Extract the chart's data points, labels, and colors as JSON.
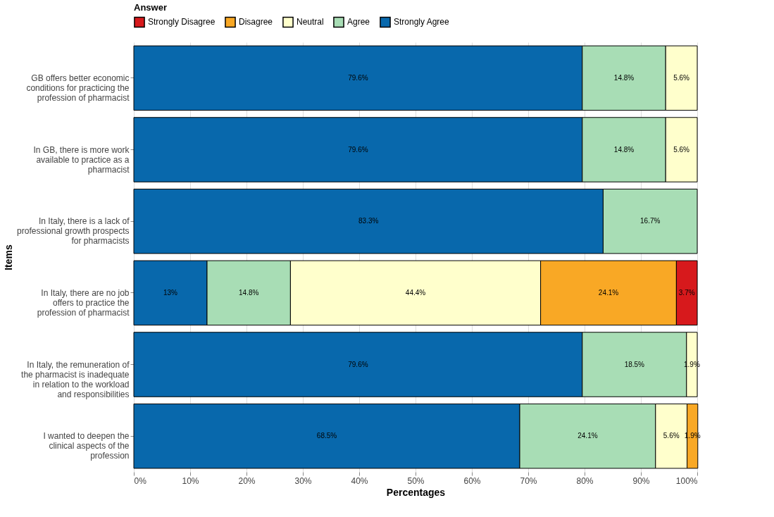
{
  "chart_data": {
    "type": "bar",
    "orientation": "horizontal",
    "stacked": true,
    "xlabel": "Percentages",
    "ylabel": "Items",
    "legend_title": "Answer",
    "legend": "top",
    "grid": "x",
    "categories": [
      "GB offers better economic conditions for practicing the profession of pharmacist",
      "In GB, there is more work available to practice as a pharmacist",
      "In Italy, there is a lack of professional growth prospects for pharmacists",
      "In Italy, there are no job offers to practice the profession of pharmacist",
      "In Italy, the remuneration of the pharmacist is inadequate in relation to the workload and responsibilities",
      "I wanted to deepen the clinical aspects of the profession"
    ],
    "xlim": [
      0,
      100
    ],
    "xticks": [
      {
        "value": 0,
        "label": "0%"
      },
      {
        "value": 10,
        "label": "10%"
      },
      {
        "value": 20,
        "label": "20%"
      },
      {
        "value": 30,
        "label": "30%"
      },
      {
        "value": 40,
        "label": "40%"
      },
      {
        "value": 50,
        "label": "50%"
      },
      {
        "value": 60,
        "label": "60%"
      },
      {
        "value": 70,
        "label": "70%"
      },
      {
        "value": 80,
        "label": "80%"
      },
      {
        "value": 90,
        "label": "90%"
      },
      {
        "value": 100,
        "label": "100%"
      }
    ],
    "series": [
      {
        "name": "Strongly Agree",
        "color": "#0868ac",
        "values": [
          79.6,
          79.6,
          83.3,
          13,
          79.6,
          68.5
        ],
        "value_labels": [
          "79.6%",
          "79.6%",
          "83.3%",
          "13%",
          "79.6%",
          "68.5%"
        ]
      },
      {
        "name": "Agree",
        "color": "#a8ddb5",
        "values": [
          14.8,
          14.8,
          16.7,
          14.8,
          18.5,
          24.1
        ],
        "value_labels": [
          "14.8%",
          "14.8%",
          "16.7%",
          "14.8%",
          "18.5%",
          "24.1%"
        ]
      },
      {
        "name": "Neutral",
        "color": "#ffffcc",
        "values": [
          5.6,
          5.6,
          null,
          44.4,
          1.9,
          5.6
        ],
        "value_labels": [
          "5.6%",
          "5.6%",
          null,
          "44.4%",
          "1.9%",
          "5.6%"
        ]
      },
      {
        "name": "Disagree",
        "color": "#f9a825",
        "values": [
          null,
          null,
          null,
          24.1,
          null,
          1.9
        ],
        "value_labels": [
          null,
          null,
          null,
          "24.1%",
          null,
          "1.9%"
        ]
      },
      {
        "name": "Strongly Disagree",
        "color": "#d7191c",
        "values": [
          null,
          null,
          null,
          3.7,
          null,
          null
        ],
        "value_labels": [
          null,
          null,
          null,
          "3.7%",
          null,
          null
        ]
      }
    ]
  }
}
